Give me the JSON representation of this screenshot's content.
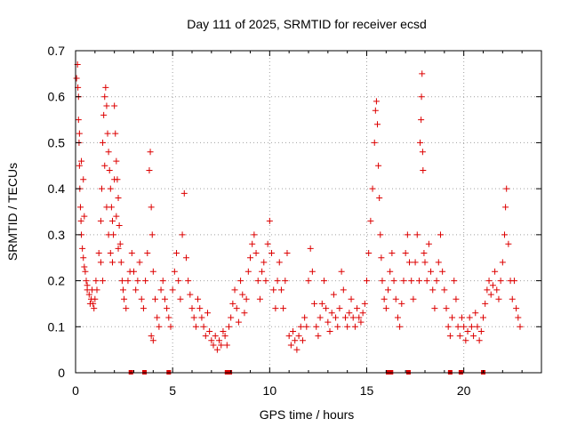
{
  "chart_data": {
    "type": "scatter",
    "title": "Day 111 of 2025, SRMTID for receiver ecsd",
    "xlabel": "GPS time / hours",
    "ylabel": "SRMTID / TECUs",
    "xlim": [
      0,
      24
    ],
    "ylim": [
      0,
      0.7
    ],
    "x_ticks": [
      0,
      5,
      10,
      15,
      20
    ],
    "y_ticks": [
      0,
      0.1,
      0.2,
      0.3,
      0.4,
      0.5,
      0.6,
      0.7
    ],
    "x_tick_labels": [
      "0",
      "5",
      "10",
      "15",
      "20"
    ],
    "y_tick_labels": [
      "0",
      "0.1",
      "0.2",
      "0.3",
      "0.4",
      "0.5",
      "0.6",
      "0.7"
    ],
    "grid": true,
    "marker": "+",
    "color": "#dd0000",
    "series": [
      {
        "name": "SRMTID",
        "points": [
          [
            0.05,
            0.64
          ],
          [
            0.1,
            0.67
          ],
          [
            0.12,
            0.62
          ],
          [
            0.15,
            0.55
          ],
          [
            0.18,
            0.5
          ],
          [
            0.2,
            0.45
          ],
          [
            0.22,
            0.4
          ],
          [
            0.25,
            0.36
          ],
          [
            0.28,
            0.33
          ],
          [
            0.3,
            0.3
          ],
          [
            0.35,
            0.27
          ],
          [
            0.4,
            0.25
          ],
          [
            0.45,
            0.23
          ],
          [
            0.5,
            0.22
          ],
          [
            0.55,
            0.2
          ],
          [
            0.6,
            0.18
          ],
          [
            0.7,
            0.17
          ],
          [
            0.8,
            0.16
          ],
          [
            0.9,
            0.15
          ],
          [
            1.0,
            0.16
          ],
          [
            0.15,
            0.6
          ],
          [
            0.3,
            0.46
          ],
          [
            0.4,
            0.42
          ],
          [
            0.2,
            0.52
          ],
          [
            0.45,
            0.34
          ],
          [
            0.6,
            0.19
          ],
          [
            0.75,
            0.15
          ],
          [
            0.85,
            0.18
          ],
          [
            0.95,
            0.14
          ],
          [
            1.05,
            0.2
          ],
          [
            1.1,
            0.18
          ],
          [
            1.2,
            0.26
          ],
          [
            1.3,
            0.33
          ],
          [
            1.35,
            0.4
          ],
          [
            1.4,
            0.5
          ],
          [
            1.45,
            0.56
          ],
          [
            1.5,
            0.6
          ],
          [
            1.55,
            0.62
          ],
          [
            1.6,
            0.58
          ],
          [
            1.65,
            0.52
          ],
          [
            1.7,
            0.48
          ],
          [
            1.75,
            0.44
          ],
          [
            1.8,
            0.4
          ],
          [
            1.85,
            0.36
          ],
          [
            1.9,
            0.33
          ],
          [
            1.95,
            0.3
          ],
          [
            2.0,
            0.58
          ],
          [
            2.05,
            0.52
          ],
          [
            2.1,
            0.46
          ],
          [
            2.15,
            0.42
          ],
          [
            2.2,
            0.38
          ],
          [
            2.25,
            0.32
          ],
          [
            2.3,
            0.28
          ],
          [
            2.35,
            0.24
          ],
          [
            2.4,
            0.2
          ],
          [
            2.45,
            0.18
          ],
          [
            2.5,
            0.16
          ],
          [
            2.6,
            0.14
          ],
          [
            2.7,
            0.2
          ],
          [
            2.8,
            0.22
          ],
          [
            1.5,
            0.45
          ],
          [
            1.6,
            0.36
          ],
          [
            1.7,
            0.3
          ],
          [
            1.8,
            0.26
          ],
          [
            1.9,
            0.24
          ],
          [
            2.0,
            0.42
          ],
          [
            2.1,
            0.34
          ],
          [
            2.2,
            0.27
          ],
          [
            1.3,
            0.24
          ],
          [
            1.4,
            0.2
          ],
          [
            2.9,
            0.26
          ],
          [
            3.0,
            0.22
          ],
          [
            3.1,
            0.18
          ],
          [
            3.2,
            0.2
          ],
          [
            3.3,
            0.24
          ],
          [
            3.4,
            0.16
          ],
          [
            3.5,
            0.14
          ],
          [
            3.6,
            0.2
          ],
          [
            3.7,
            0.26
          ],
          [
            3.8,
            0.44
          ],
          [
            3.85,
            0.48
          ],
          [
            3.9,
            0.36
          ],
          [
            3.95,
            0.3
          ],
          [
            4.0,
            0.22
          ],
          [
            4.1,
            0.16
          ],
          [
            4.2,
            0.12
          ],
          [
            4.3,
            0.1
          ],
          [
            3.9,
            0.08
          ],
          [
            4.0,
            0.07
          ],
          [
            4.4,
            0.18
          ],
          [
            4.5,
            0.2
          ],
          [
            4.6,
            0.16
          ],
          [
            4.7,
            0.14
          ],
          [
            4.8,
            0.12
          ],
          [
            4.9,
            0.1
          ],
          [
            5.0,
            0.18
          ],
          [
            5.1,
            0.22
          ],
          [
            5.2,
            0.26
          ],
          [
            5.3,
            0.2
          ],
          [
            5.4,
            0.16
          ],
          [
            5.5,
            0.3
          ],
          [
            5.6,
            0.39
          ],
          [
            5.7,
            0.25
          ],
          [
            5.8,
            0.2
          ],
          [
            5.9,
            0.17
          ],
          [
            6.0,
            0.14
          ],
          [
            6.1,
            0.12
          ],
          [
            6.2,
            0.1
          ],
          [
            6.3,
            0.16
          ],
          [
            6.4,
            0.14
          ],
          [
            6.5,
            0.12
          ],
          [
            6.6,
            0.1
          ],
          [
            6.7,
            0.08
          ],
          [
            6.8,
            0.13
          ],
          [
            6.9,
            0.09
          ],
          [
            7.0,
            0.07
          ],
          [
            7.1,
            0.06
          ],
          [
            7.2,
            0.08
          ],
          [
            7.3,
            0.05
          ],
          [
            7.4,
            0.07
          ],
          [
            7.5,
            0.06
          ],
          [
            7.6,
            0.09
          ],
          [
            7.7,
            0.08
          ],
          [
            7.8,
            0.06
          ],
          [
            7.9,
            0.1
          ],
          [
            8.0,
            0.12
          ],
          [
            8.1,
            0.15
          ],
          [
            8.2,
            0.18
          ],
          [
            8.3,
            0.14
          ],
          [
            8.4,
            0.11
          ],
          [
            8.5,
            0.2
          ],
          [
            8.6,
            0.17
          ],
          [
            8.7,
            0.13
          ],
          [
            8.8,
            0.16
          ],
          [
            8.9,
            0.22
          ],
          [
            9.0,
            0.25
          ],
          [
            9.1,
            0.28
          ],
          [
            9.2,
            0.3
          ],
          [
            9.3,
            0.26
          ],
          [
            9.4,
            0.2
          ],
          [
            9.5,
            0.16
          ],
          [
            9.6,
            0.22
          ],
          [
            9.7,
            0.24
          ],
          [
            9.8,
            0.2
          ],
          [
            9.9,
            0.28
          ],
          [
            10.0,
            0.33
          ],
          [
            10.1,
            0.26
          ],
          [
            10.2,
            0.18
          ],
          [
            10.3,
            0.14
          ],
          [
            10.4,
            0.2
          ],
          [
            10.5,
            0.24
          ],
          [
            10.6,
            0.18
          ],
          [
            10.7,
            0.14
          ],
          [
            10.8,
            0.2
          ],
          [
            10.9,
            0.26
          ],
          [
            11.0,
            0.08
          ],
          [
            11.1,
            0.06
          ],
          [
            11.2,
            0.09
          ],
          [
            11.3,
            0.07
          ],
          [
            11.4,
            0.05
          ],
          [
            11.5,
            0.08
          ],
          [
            11.6,
            0.1
          ],
          [
            11.7,
            0.07
          ],
          [
            11.8,
            0.12
          ],
          [
            11.9,
            0.1
          ],
          [
            12.0,
            0.2
          ],
          [
            12.1,
            0.27
          ],
          [
            12.2,
            0.22
          ],
          [
            12.3,
            0.15
          ],
          [
            12.4,
            0.1
          ],
          [
            12.5,
            0.08
          ],
          [
            12.6,
            0.12
          ],
          [
            12.7,
            0.15
          ],
          [
            12.8,
            0.2
          ],
          [
            12.9,
            0.14
          ],
          [
            13.0,
            0.11
          ],
          [
            13.1,
            0.09
          ],
          [
            13.2,
            0.13
          ],
          [
            13.3,
            0.17
          ],
          [
            13.4,
            0.12
          ],
          [
            13.5,
            0.1
          ],
          [
            13.6,
            0.14
          ],
          [
            13.7,
            0.22
          ],
          [
            13.8,
            0.18
          ],
          [
            13.9,
            0.12
          ],
          [
            14.0,
            0.1
          ],
          [
            14.1,
            0.13
          ],
          [
            14.2,
            0.16
          ],
          [
            14.3,
            0.12
          ],
          [
            14.4,
            0.1
          ],
          [
            14.5,
            0.14
          ],
          [
            14.6,
            0.12
          ],
          [
            14.7,
            0.11
          ],
          [
            14.8,
            0.13
          ],
          [
            14.9,
            0.15
          ],
          [
            15.0,
            0.2
          ],
          [
            15.1,
            0.26
          ],
          [
            15.2,
            0.33
          ],
          [
            15.3,
            0.4
          ],
          [
            15.4,
            0.5
          ],
          [
            15.45,
            0.57
          ],
          [
            15.5,
            0.59
          ],
          [
            15.55,
            0.54
          ],
          [
            15.6,
            0.45
          ],
          [
            15.65,
            0.38
          ],
          [
            15.7,
            0.3
          ],
          [
            15.75,
            0.25
          ],
          [
            15.8,
            0.2
          ],
          [
            15.9,
            0.16
          ],
          [
            16.0,
            0.14
          ],
          [
            16.1,
            0.18
          ],
          [
            16.2,
            0.22
          ],
          [
            16.3,
            0.26
          ],
          [
            16.4,
            0.2
          ],
          [
            16.5,
            0.16
          ],
          [
            16.6,
            0.12
          ],
          [
            16.7,
            0.1
          ],
          [
            16.8,
            0.15
          ],
          [
            16.9,
            0.2
          ],
          [
            17.0,
            0.26
          ],
          [
            17.1,
            0.3
          ],
          [
            17.2,
            0.24
          ],
          [
            17.3,
            0.2
          ],
          [
            17.4,
            0.16
          ],
          [
            17.5,
            0.24
          ],
          [
            17.6,
            0.3
          ],
          [
            17.7,
            0.2
          ],
          [
            17.75,
            0.5
          ],
          [
            17.8,
            0.55
          ],
          [
            17.82,
            0.6
          ],
          [
            17.85,
            0.65
          ],
          [
            17.88,
            0.48
          ],
          [
            17.9,
            0.44
          ],
          [
            17.95,
            0.26
          ],
          [
            18.0,
            0.24
          ],
          [
            18.1,
            0.2
          ],
          [
            18.2,
            0.28
          ],
          [
            18.3,
            0.22
          ],
          [
            18.4,
            0.18
          ],
          [
            18.5,
            0.14
          ],
          [
            18.6,
            0.2
          ],
          [
            18.7,
            0.24
          ],
          [
            18.8,
            0.3
          ],
          [
            18.9,
            0.22
          ],
          [
            19.0,
            0.18
          ],
          [
            19.1,
            0.14
          ],
          [
            19.2,
            0.1
          ],
          [
            19.3,
            0.08
          ],
          [
            19.4,
            0.12
          ],
          [
            19.5,
            0.2
          ],
          [
            19.6,
            0.16
          ],
          [
            19.7,
            0.1
          ],
          [
            19.8,
            0.08
          ],
          [
            19.9,
            0.12
          ],
          [
            20.0,
            0.1
          ],
          [
            20.1,
            0.07
          ],
          [
            20.2,
            0.09
          ],
          [
            20.3,
            0.12
          ],
          [
            20.4,
            0.1
          ],
          [
            20.5,
            0.08
          ],
          [
            20.6,
            0.13
          ],
          [
            20.7,
            0.1
          ],
          [
            20.8,
            0.07
          ],
          [
            20.9,
            0.09
          ],
          [
            21.0,
            0.12
          ],
          [
            21.1,
            0.15
          ],
          [
            21.2,
            0.18
          ],
          [
            21.3,
            0.2
          ],
          [
            21.4,
            0.17
          ],
          [
            21.5,
            0.19
          ],
          [
            21.6,
            0.22
          ],
          [
            21.7,
            0.18
          ],
          [
            21.8,
            0.16
          ],
          [
            21.9,
            0.2
          ],
          [
            22.0,
            0.24
          ],
          [
            22.1,
            0.3
          ],
          [
            22.15,
            0.36
          ],
          [
            22.2,
            0.4
          ],
          [
            22.3,
            0.28
          ],
          [
            22.4,
            0.2
          ],
          [
            22.5,
            0.16
          ],
          [
            22.6,
            0.2
          ],
          [
            22.7,
            0.14
          ],
          [
            22.8,
            0.12
          ],
          [
            22.9,
            0.1
          ]
        ]
      }
    ],
    "baseline_markers_x": [
      2.85,
      3.55,
      4.8,
      7.8,
      7.95,
      16.1,
      16.25,
      17.15,
      19.3,
      19.85,
      21.0
    ]
  }
}
